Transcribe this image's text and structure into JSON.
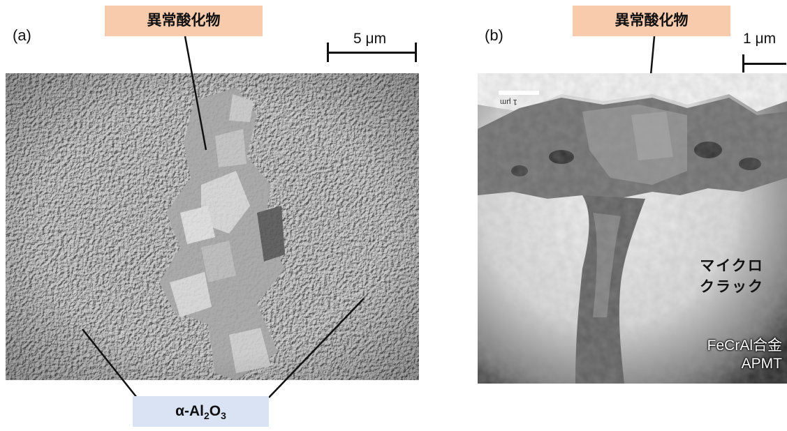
{
  "panel_a": {
    "label": "(a)",
    "callout_top": "異常酸化物",
    "scale_label": "5 μm",
    "callout_bottom_prefix": "α-Al",
    "callout_bottom_sub1": "2",
    "callout_bottom_mid": "O",
    "callout_bottom_sub2": "3"
  },
  "panel_b": {
    "label": "(b)",
    "callout_top": "異常酸化物",
    "scale_label": "1 μm",
    "crack_line1": "マイクロ",
    "crack_line2": "クラック",
    "material_line1": "FeCrAl合金",
    "material_line2": "APMT",
    "embedded_scale_text": "1 μm"
  },
  "colors": {
    "callout_peach": "#f8cbad",
    "callout_blue": "#dae3f3"
  }
}
